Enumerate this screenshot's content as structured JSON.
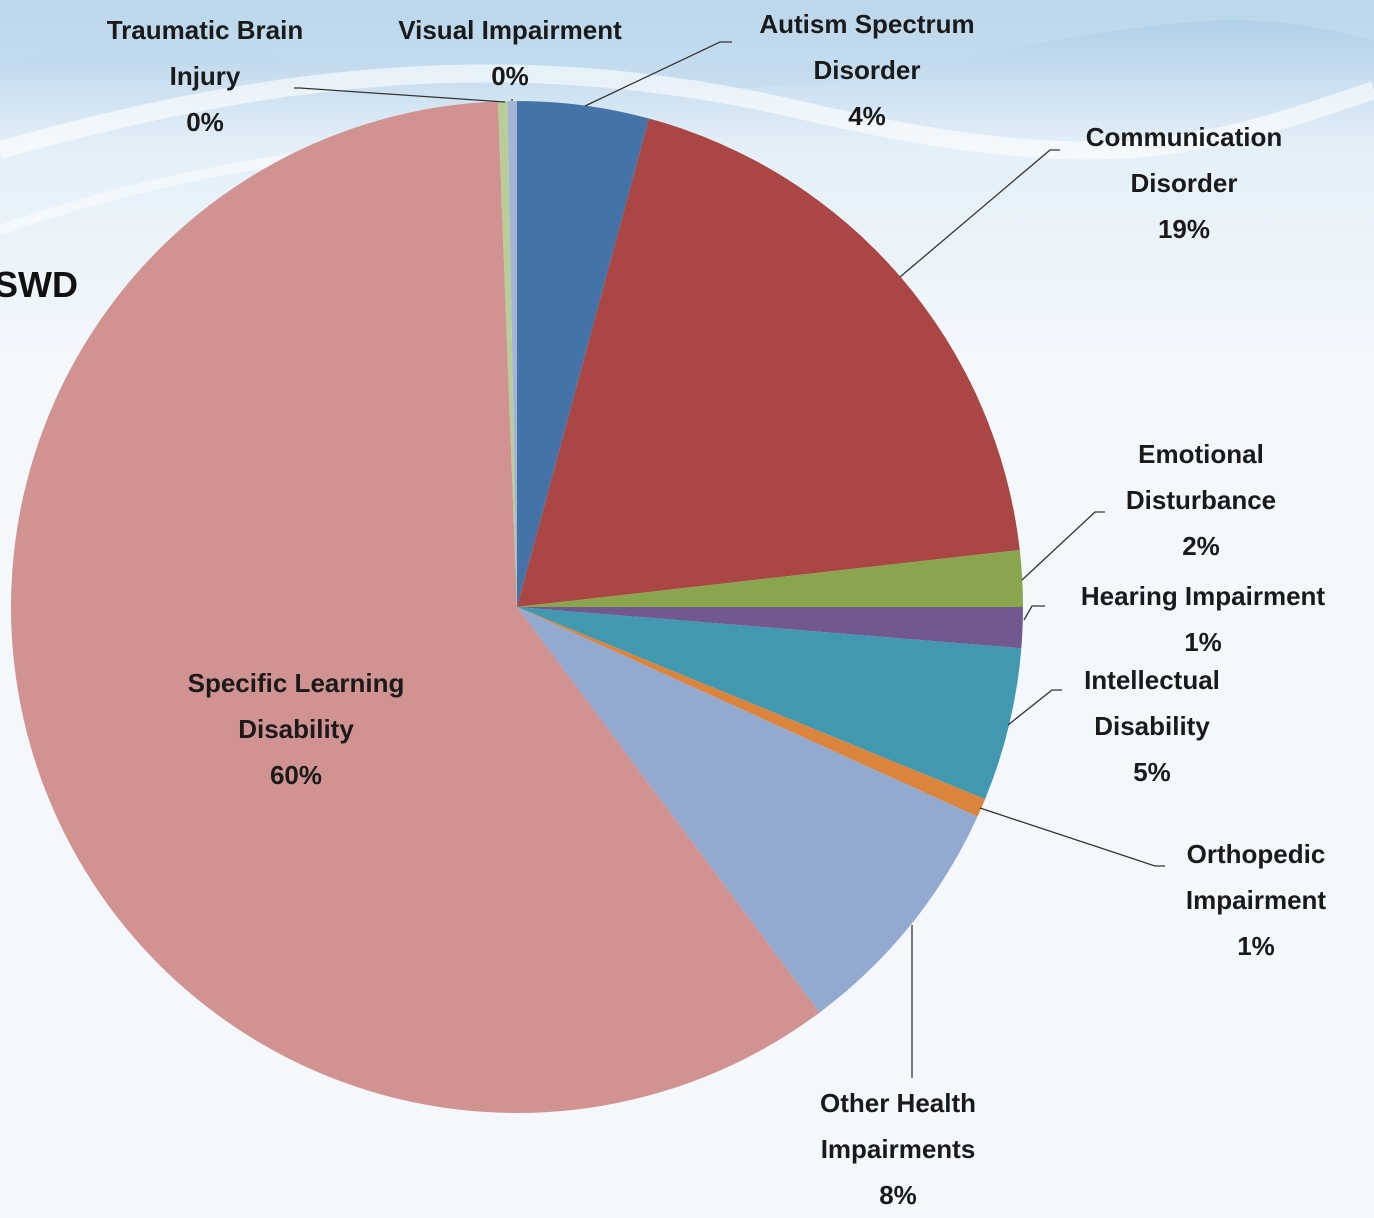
{
  "chart_data": {
    "type": "pie",
    "title": "SWD",
    "categories": [
      "Autism Spectrum Disorder",
      "Communication Disorder",
      "Emotional Disturbance",
      "Hearing Impairment",
      "Intellectual Disability",
      "Orthopedic Impairment",
      "Other Health Impairments",
      "Specific Learning Disability",
      "Traumatic Brain Injury",
      "Visual Impairment"
    ],
    "values": [
      4.2,
      19.0,
      1.8,
      1.3,
      4.9,
      0.6,
      8.0,
      59.6,
      0.3,
      0.3
    ],
    "value_labels": [
      "4%",
      "19%",
      "2%",
      "1%",
      "5%",
      "1%",
      "8%",
      "60%",
      "0%",
      "0%"
    ],
    "colors": [
      "#4572a7",
      "#aa4643",
      "#89a54e",
      "#71588f",
      "#4198af",
      "#db843d",
      "#93a9cf",
      "#d19392",
      "#b9cd96",
      "#a3b4d6"
    ]
  }
}
